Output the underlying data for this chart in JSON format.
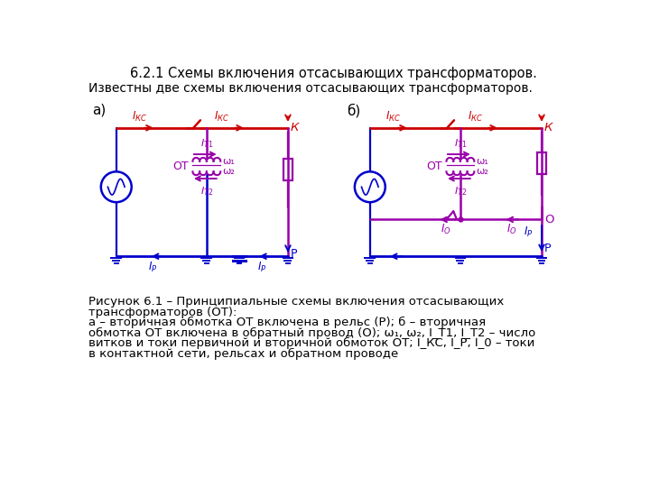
{
  "title": "6.2.1 Схемы включения отсасывающих трансформаторов.",
  "subtitle": "Известны две схемы включения отсасывающих трансформаторов.",
  "label_a": "а)",
  "label_b": "б)",
  "cap1": "Рисунок 6.1 – Принципиальные схемы включения отсасывающих",
  "cap2": "трансформаторов (ОТ):",
  "cap3": "а – вторичная обмотка ОТ включена в рельс (Р); б – вторичная",
  "cap4": "обмотка ОТ включена в обратный провод (О); ω₁, ω₂, I_T1, I_T2 – число",
  "cap5": "витков и токи первичной и вторичной обмоток ОТ; I_КС, I_Р, I_0 – токи",
  "cap6": "в контактной сети, рельсах и обратном проводе",
  "bg": "#ffffff",
  "RED": "#cc0000",
  "BLUE": "#0000cc",
  "PURPLE": "#9900aa"
}
